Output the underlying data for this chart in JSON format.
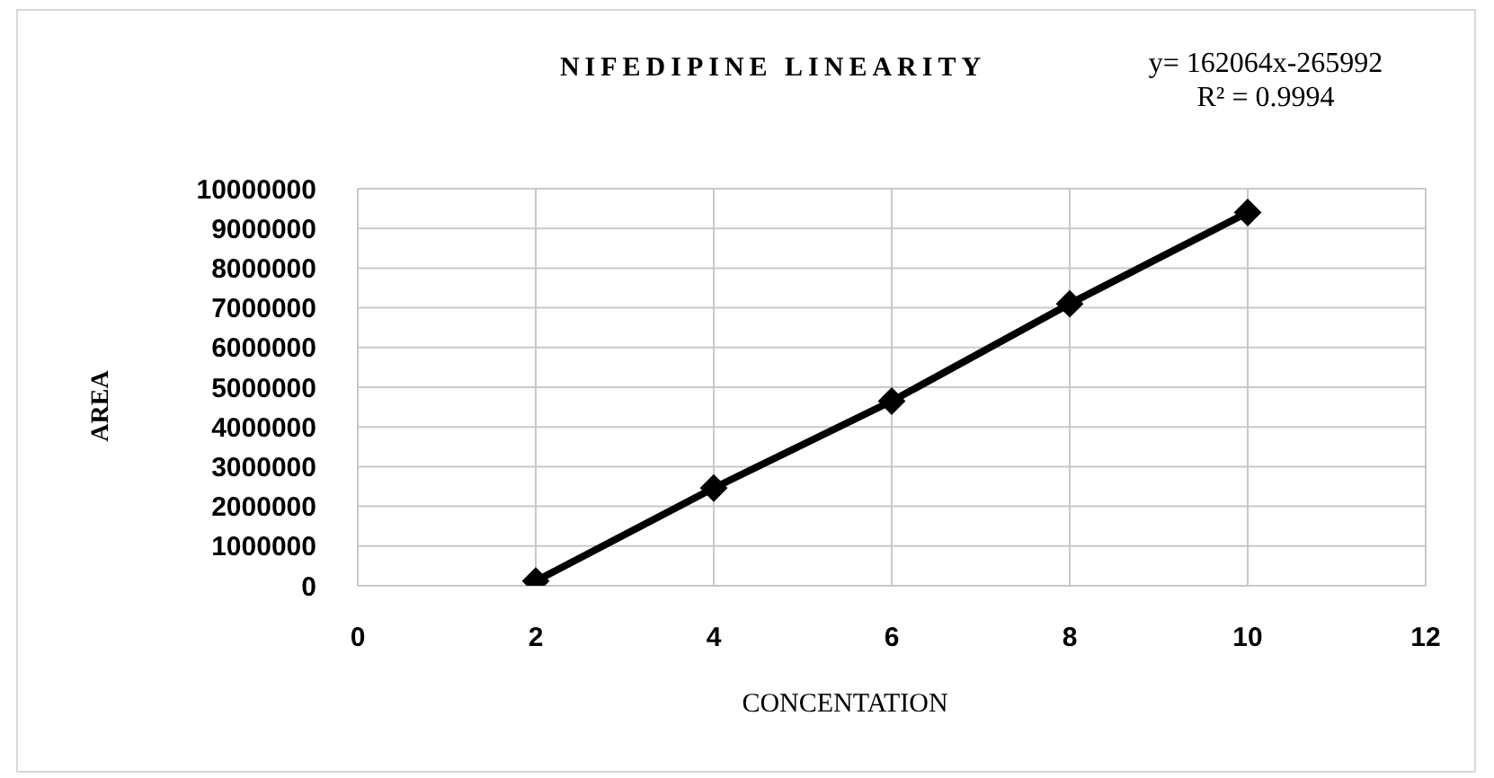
{
  "chart_data": {
    "type": "line",
    "title": "NIFEDIPINE LINEARITY",
    "xlabel": "CONCENTATION",
    "ylabel": "AREA",
    "annotations": [
      "y= 162064x-265992",
      "R² = 0.9994"
    ],
    "x": [
      2,
      4,
      6,
      8,
      10
    ],
    "values": [
      120000,
      2460000,
      4650000,
      7100000,
      9400000
    ],
    "color": "#000000",
    "xlim": [
      0,
      12
    ],
    "xticks": [
      0,
      2,
      4,
      6,
      8,
      10,
      12
    ],
    "ylim": [
      0,
      10000000
    ],
    "yticks": [
      0,
      1000000,
      2000000,
      3000000,
      4000000,
      5000000,
      6000000,
      7000000,
      8000000,
      9000000,
      10000000
    ],
    "grid": true,
    "marker": "diamond",
    "line_style": "solid"
  }
}
